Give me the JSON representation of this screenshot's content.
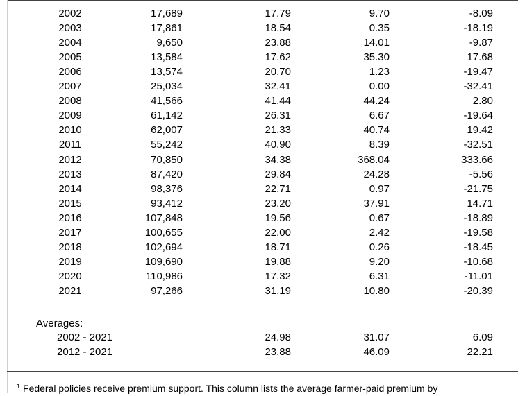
{
  "table": {
    "rows": [
      {
        "year": "2002",
        "a": "17,689",
        "b": "17.79",
        "c": "9.70",
        "d": "-8.09"
      },
      {
        "year": "2003",
        "a": "17,861",
        "b": "18.54",
        "c": "0.35",
        "d": "-18.19"
      },
      {
        "year": "2004",
        "a": "9,650",
        "b": "23.88",
        "c": "14.01",
        "d": "-9.87"
      },
      {
        "year": "2005",
        "a": "13,584",
        "b": "17.62",
        "c": "35.30",
        "d": "17.68"
      },
      {
        "year": "2006",
        "a": "13,574",
        "b": "20.70",
        "c": "1.23",
        "d": "-19.47"
      },
      {
        "year": "2007",
        "a": "25,034",
        "b": "32.41",
        "c": "0.00",
        "d": "-32.41"
      },
      {
        "year": "2008",
        "a": "41,566",
        "b": "41.44",
        "c": "44.24",
        "d": "2.80"
      },
      {
        "year": "2009",
        "a": "61,142",
        "b": "26.31",
        "c": "6.67",
        "d": "-19.64"
      },
      {
        "year": "2010",
        "a": "62,007",
        "b": "21.33",
        "c": "40.74",
        "d": "19.42"
      },
      {
        "year": "2011",
        "a": "55,242",
        "b": "40.90",
        "c": "8.39",
        "d": "-32.51"
      },
      {
        "year": "2012",
        "a": "70,850",
        "b": "34.38",
        "c": "368.04",
        "d": "333.66"
      },
      {
        "year": "2013",
        "a": "87,420",
        "b": "29.84",
        "c": "24.28",
        "d": "-5.56"
      },
      {
        "year": "2014",
        "a": "98,376",
        "b": "22.71",
        "c": "0.97",
        "d": "-21.75"
      },
      {
        "year": "2015",
        "a": "93,412",
        "b": "23.20",
        "c": "37.91",
        "d": "14.71"
      },
      {
        "year": "2016",
        "a": "107,848",
        "b": "19.56",
        "c": "0.67",
        "d": "-18.89"
      },
      {
        "year": "2017",
        "a": "100,655",
        "b": "22.00",
        "c": "2.42",
        "d": "-19.58"
      },
      {
        "year": "2018",
        "a": "102,694",
        "b": "18.71",
        "c": "0.26",
        "d": "-18.45"
      },
      {
        "year": "2019",
        "a": "109,690",
        "b": "19.88",
        "c": "9.20",
        "d": "-10.68"
      },
      {
        "year": "2020",
        "a": "110,986",
        "b": "17.32",
        "c": "6.31",
        "d": "-11.01"
      },
      {
        "year": "2021",
        "a": "97,266",
        "b": "31.19",
        "c": "10.80",
        "d": "-20.39"
      }
    ]
  },
  "averages": {
    "title": "Averages:",
    "rows": [
      {
        "label": "2002 - 2021",
        "b": "24.98",
        "c": "31.07",
        "d": "6.09"
      },
      {
        "label": "2012 - 2021",
        "b": "23.88",
        "c": "46.09",
        "d": "22.21"
      }
    ]
  },
  "footnote": {
    "marker": "1",
    "text": "Federal policies receive premium support.  This column lists the average farmer-paid premium by"
  }
}
